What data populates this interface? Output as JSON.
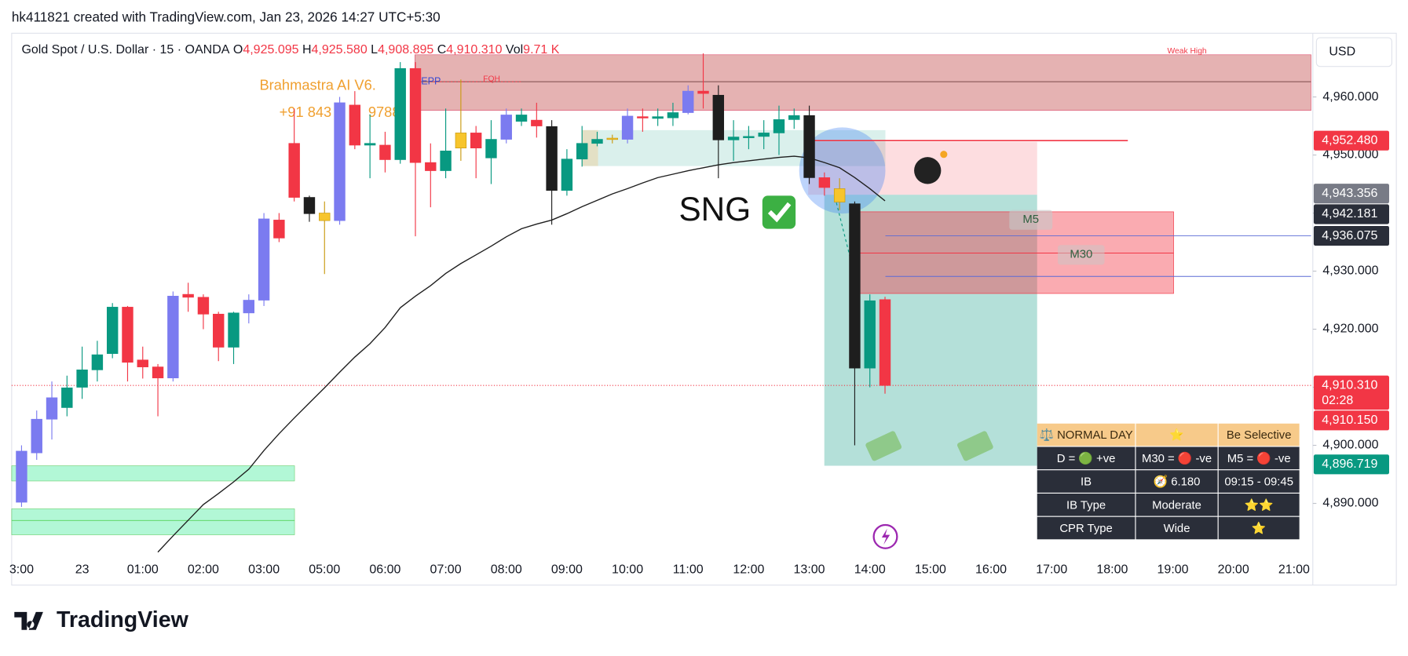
{
  "header": {
    "credit": "hk411821 created with TradingView.com, Jan 23, 2026 14:27 UTC+5:30",
    "logo": "TradingView"
  },
  "chart_data": {
    "type": "candlestick",
    "legend": {
      "symbol": "Gold Spot / U.S. Dollar · 15 · OANDA",
      "ohlc": [
        {
          "key": "O",
          "value": "4,925.095"
        },
        {
          "key": "H",
          "value": "4,925.580"
        },
        {
          "key": "L",
          "value": "4,908.895"
        },
        {
          "key": "C",
          "value": "4,910.310"
        },
        {
          "key": "Vol",
          "value": "9.71 K"
        }
      ]
    },
    "currency": "USD",
    "annotations": {
      "brand": "Brahmastra AI V6.",
      "phone_a": "+91 843",
      "phone_b": "9788",
      "epp": "EPP",
      "fqh": "FQH",
      "weak_high": "Weak High",
      "signal": "SNG",
      "m5": "M5",
      "m30": "M30"
    },
    "categories": [
      "3:00",
      null,
      null,
      null,
      "23",
      null,
      null,
      null,
      "01:00",
      null,
      null,
      null,
      "02:00",
      null,
      null,
      null,
      "03:00",
      null,
      null,
      null,
      "05:00",
      null,
      null,
      null,
      "06:00",
      null,
      null,
      null,
      "07:00",
      null,
      null,
      null,
      "08:00",
      null,
      null,
      null,
      "09:00",
      null,
      null,
      null,
      "10:00",
      null,
      null,
      null,
      "11:00",
      null,
      null,
      null,
      "12:00",
      null,
      null,
      null,
      "13:00",
      null,
      null,
      null,
      "14:00",
      null,
      null,
      null,
      "15:00",
      null,
      null,
      null,
      "16:00",
      null,
      null,
      null,
      "17:00",
      null,
      null,
      null,
      "18:00",
      null,
      null,
      null,
      "19:00",
      null,
      null,
      null,
      "20:00",
      null,
      null,
      null,
      "21:00"
    ],
    "open": [
      4890.2,
      4898.7,
      4904.5,
      4906.5,
      4910,
      4913,
      4915.8,
      4923.8,
      4914.7,
      4913.5,
      4911.6,
      4926,
      4925.5,
      4922.6,
      4916.9,
      4922.8,
      4925,
      4938.8,
      4952,
      4942.7,
      4940,
      4938.7,
      4958.6,
      4951.7,
      4951.7,
      4949.2,
      4964.9,
      4948.7,
      4947.3,
      4951.2,
      4953.8,
      4949.5,
      4952.7,
      4955.8,
      4956,
      4954.9,
      4943.9,
      4949.3,
      4952,
      4952.7,
      4952.7,
      4956.6,
      4956.3,
      4956.4,
      4957.3,
      4961,
      4960.3,
      4952.6,
      4953,
      4953.2,
      4953.8,
      4956.1,
      4956.8,
      4946.1,
      4944.2,
      4941.6,
      4913.3,
      4925.095,
      null,
      null,
      null,
      null,
      null,
      null,
      null,
      null,
      null,
      null,
      null,
      null,
      null,
      null,
      null,
      null,
      null,
      null,
      null,
      null,
      null,
      null,
      null,
      null,
      null,
      null,
      null
    ],
    "high": [
      4900,
      4906,
      4911,
      4912,
      4917,
      4918,
      4924.5,
      4924,
      4917,
      4914,
      4926.5,
      4928,
      4926,
      4923,
      4923,
      4926,
      4940,
      4940,
      4958,
      4943,
      4942,
      4960,
      4961,
      4957,
      4954,
      4966,
      4966,
      4952,
      4958,
      4963,
      4955,
      4956,
      4958,
      4958,
      4959,
      4956,
      4951,
      4955,
      4954,
      4953.5,
      4958,
      4958,
      4958,
      4959,
      4962,
      4967.5,
      4962,
      4956,
      4955,
      4956,
      4958.5,
      4958,
      4958.5,
      4947,
      4946,
      4942,
      4926,
      4925.58,
      null,
      null,
      null,
      null,
      null,
      null,
      null,
      null,
      null,
      null,
      null,
      null,
      null,
      null,
      null,
      null,
      null,
      null,
      null,
      null,
      null,
      null,
      null,
      null,
      null,
      null,
      null
    ],
    "low": [
      4889.4,
      4897.5,
      4901,
      4905,
      4908,
      4911,
      4915,
      4911,
      4911.5,
      4905,
      4911,
      4923,
      4920,
      4914.5,
      4914,
      4921,
      4924,
      4935,
      4942,
      4938.5,
      4929.5,
      4938,
      4951,
      4946,
      4947,
      4948.5,
      4936,
      4941,
      4946,
      4949,
      4946,
      4945,
      4952,
      4955,
      4953,
      4938,
      4943,
      4948,
      4951.5,
      4952,
      4952,
      4954,
      4955,
      4955,
      4957,
      4958,
      4946,
      4949,
      4951,
      4951,
      4950,
      4954.5,
      4945,
      4943,
      4940.5,
      4900,
      4910,
      4908.895,
      null,
      null,
      null,
      null,
      null,
      null,
      null,
      null,
      null,
      null,
      null,
      null,
      null,
      null,
      null,
      null,
      null,
      null,
      null,
      null,
      null,
      null,
      null,
      null,
      null,
      null,
      null
    ],
    "close": [
      4899,
      4904.5,
      4908.2,
      4909.9,
      4913,
      4915.6,
      4923.8,
      4914.3,
      4913.5,
      4911.6,
      4925.7,
      4925.5,
      4922.6,
      4916.9,
      4922.8,
      4925,
      4939,
      4935.7,
      4942.7,
      4939.9,
      4938.7,
      4959,
      4951.7,
      4952,
      4949.2,
      4964.9,
      4948.7,
      4947.3,
      4950.7,
      4953.8,
      4951.2,
      4952.7,
      4956.9,
      4956.9,
      4955,
      4943.9,
      4949.3,
      4952,
      4952.7,
      4952.9,
      4956.7,
      4956.4,
      4956.6,
      4957.3,
      4961,
      4960.6,
      4952.6,
      4953.1,
      4953.2,
      4953.8,
      4956.1,
      4956.8,
      4946.1,
      4944.4,
      4941.9,
      4913.3,
      4924.9,
      4910.31,
      null,
      null,
      null,
      null,
      null,
      null,
      null,
      null,
      null,
      null,
      null,
      null,
      null,
      null,
      null,
      null,
      null,
      null,
      null,
      null,
      null,
      null,
      null,
      null,
      null,
      null,
      null
    ],
    "colors": [
      "#7b7bf0",
      "#7b7bf0",
      "#7b7bf0",
      "#089981",
      "#089981",
      "#089981",
      "#089981",
      "#f23645",
      "#f23645",
      "#f23645",
      "#7b7bf0",
      "#f23645",
      "#f23645",
      "#f23645",
      "#089981",
      "#7b7bf0",
      "#7b7bf0",
      "#f23645",
      "#f23645",
      "#1e1e1e",
      "#f7c52c",
      "#7b7bf0",
      "#f23645",
      "#089981",
      "#f23645",
      "#089981",
      "#f23645",
      "#f23645",
      "#089981",
      "#f7c52c",
      "#f23645",
      "#089981",
      "#7b7bf0",
      "#089981",
      "#f23645",
      "#1e1e1e",
      "#089981",
      "#089981",
      "#089981",
      "#f7c52c",
      "#7b7bf0",
      "#f23645",
      "#089981",
      "#089981",
      "#7b7bf0",
      "#f23645",
      "#1e1e1e",
      "#089981",
      "#089981",
      "#089981",
      "#089981",
      "#089981",
      "#1e1e1e",
      "#f23645",
      "#f7c52c",
      "#1e1e1e",
      "#089981",
      "#f23645",
      null,
      null,
      null,
      null,
      null,
      null,
      null,
      null,
      null,
      null,
      null,
      null,
      null,
      null,
      null,
      null,
      null,
      null,
      null,
      null,
      null,
      null,
      null,
      null,
      null,
      null,
      null
    ],
    "ma": {
      "color": "#1e1e1e",
      "values": [
        null,
        null,
        null,
        null,
        null,
        null,
        null,
        null,
        null,
        4881.6,
        4884.4,
        4887.1,
        4889.8,
        4891.7,
        4893.7,
        4895.9,
        4899.1,
        4902.0,
        4904.7,
        4907.3,
        4909.9,
        4912.6,
        4915.2,
        4917.5,
        4920.3,
        4923.7,
        4925.7,
        4927.5,
        4929.6,
        4931.3,
        4932.8,
        4934.3,
        4935.9,
        4937.3,
        4938.1,
        4938.8,
        4939.9,
        4941.1,
        4942.2,
        4943.3,
        4944.2,
        4945.2,
        4946.1,
        4946.7,
        4947.3,
        4947.8,
        4948.3,
        4948.7,
        4949.0,
        4949.3,
        4949.6,
        4949.8,
        4949.5,
        4948.7,
        4947.8,
        4946.1,
        4944.2,
        4942.1,
        null,
        null,
        null,
        null,
        null,
        null,
        null,
        null,
        null,
        null,
        null,
        null,
        null,
        null,
        null,
        null,
        null,
        null,
        null,
        null,
        null,
        null,
        null,
        null,
        null,
        null,
        null
      ]
    },
    "ylim": [
      4880.57,
      4970.97
    ],
    "yticks": [
      {
        "value": 4890,
        "label": "4,890.000"
      },
      {
        "value": 4900,
        "label": "4,900.000"
      },
      {
        "value": 4910,
        "label": "4,910.000"
      },
      {
        "value": 4920,
        "label": "4,920.000"
      },
      {
        "value": 4930,
        "label": "4,930.000"
      },
      {
        "value": 4940,
        "label": "4,940.000"
      },
      {
        "value": 4950,
        "label": "4,950.000"
      },
      {
        "value": 4960,
        "label": "4,960.000"
      }
    ],
    "grid": false,
    "price_labels": [
      {
        "value": 4952.48,
        "label": "4,952.480",
        "color": "#f23645"
      },
      {
        "value": 4943.356,
        "label": "4,943.356",
        "color": "#787b86"
      },
      {
        "value": 4942.181,
        "label": "4,942.181",
        "color": "#2a2e39"
      },
      {
        "value": 4936.075,
        "label": "4,936.075",
        "color": "#2a2e39"
      },
      {
        "value": 4910.31,
        "label": "4,910.310",
        "color": "#f23645",
        "countdown": "02:28"
      },
      {
        "value": 4910.15,
        "label": "4,910.150",
        "color": "#f23645"
      },
      {
        "value": 4896.719,
        "label": "4,896.719",
        "color": "#089981"
      }
    ],
    "table": {
      "rows": [
        [
          "⚖️ NORMAL DAY",
          "⭐",
          "Be Selective"
        ],
        [
          "D = 🟢 +ve",
          "M30 = 🔴 -ve",
          "M5 = 🔴 -ve"
        ],
        [
          "IB",
          "🧭 6.180",
          "09:15 - 09:45"
        ],
        [
          "IB Type",
          "Moderate",
          "⭐⭐"
        ],
        [
          "CPR Type",
          "Wide",
          "⭐"
        ]
      ]
    }
  }
}
